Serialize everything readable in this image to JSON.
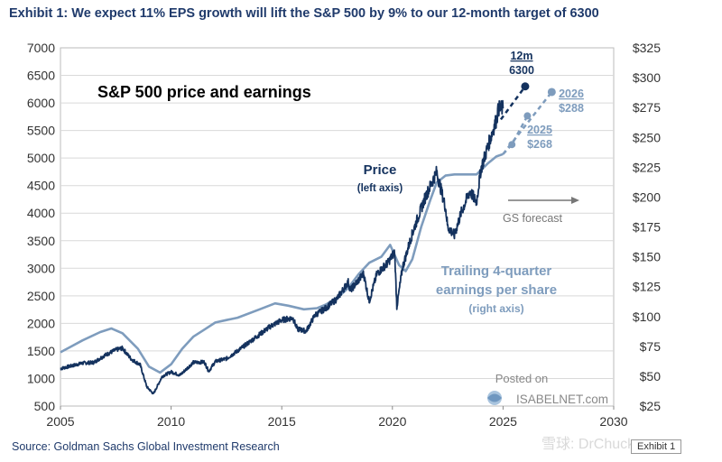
{
  "header": {
    "title": "Exhibit 1: We expect 11% EPS growth will lift the S&P 500 by 9% to our 12-month target of 6300"
  },
  "footer": {
    "source": "Source: Goldman Sachs Global Investment Research",
    "exhibit_label": "Exhibit 1",
    "watermark": "雪球: DrChuck"
  },
  "posted": {
    "line1": "Posted on",
    "line2": "ISABELNET.com"
  },
  "colors": {
    "price": "#14325e",
    "eps": "#7e9cbd",
    "forecast_arrow": "#777777",
    "title_text": "#1f3a6b",
    "grid": "#d9d9d9"
  },
  "chart_data": {
    "type": "line",
    "title": "S&P 500 price and earnings",
    "x_range": [
      2005,
      2030
    ],
    "x_ticks": [
      "2005",
      "2010",
      "2015",
      "2020",
      "2025",
      "2030"
    ],
    "y_left_range": [
      500,
      7000
    ],
    "y_left_ticks": [
      "500",
      "1000",
      "1500",
      "2000",
      "2500",
      "3000",
      "3500",
      "4000",
      "4500",
      "5000",
      "5500",
      "6000",
      "6500",
      "7000"
    ],
    "y_right_range": [
      25,
      325
    ],
    "y_right_ticks": [
      "$25",
      "$50",
      "$75",
      "$100",
      "$125",
      "$150",
      "$175",
      "$200",
      "$225",
      "$250",
      "$275",
      "$300",
      "$325"
    ],
    "grid": "horizontal",
    "series": [
      {
        "name": "Price",
        "name_sub": "(left axis)",
        "axis": "left",
        "points": [
          [
            2005.0,
            1180
          ],
          [
            2005.5,
            1230
          ],
          [
            2006.0,
            1280
          ],
          [
            2006.5,
            1290
          ],
          [
            2007.0,
            1420
          ],
          [
            2007.5,
            1520
          ],
          [
            2007.8,
            1550
          ],
          [
            2008.2,
            1350
          ],
          [
            2008.6,
            1250
          ],
          [
            2008.9,
            850
          ],
          [
            2009.2,
            720
          ],
          [
            2009.6,
            1040
          ],
          [
            2010.0,
            1120
          ],
          [
            2010.4,
            1060
          ],
          [
            2011.0,
            1290
          ],
          [
            2011.5,
            1300
          ],
          [
            2011.7,
            1130
          ],
          [
            2012.0,
            1310
          ],
          [
            2012.5,
            1360
          ],
          [
            2013.0,
            1500
          ],
          [
            2013.5,
            1650
          ],
          [
            2014.0,
            1800
          ],
          [
            2014.5,
            1950
          ],
          [
            2015.0,
            2060
          ],
          [
            2015.5,
            2100
          ],
          [
            2015.7,
            1900
          ],
          [
            2016.1,
            1860
          ],
          [
            2016.5,
            2150
          ],
          [
            2017.0,
            2280
          ],
          [
            2017.5,
            2450
          ],
          [
            2018.0,
            2750
          ],
          [
            2018.1,
            2600
          ],
          [
            2018.7,
            2900
          ],
          [
            2018.95,
            2400
          ],
          [
            2019.3,
            2900
          ],
          [
            2019.8,
            3100
          ],
          [
            2020.1,
            3300
          ],
          [
            2020.2,
            2300
          ],
          [
            2020.45,
            3000
          ],
          [
            2020.8,
            3500
          ],
          [
            2021.0,
            3750
          ],
          [
            2021.5,
            4300
          ],
          [
            2022.0,
            4750
          ],
          [
            2022.4,
            4100
          ],
          [
            2022.5,
            3750
          ],
          [
            2022.8,
            3600
          ],
          [
            2023.1,
            4000
          ],
          [
            2023.5,
            4400
          ],
          [
            2023.8,
            4200
          ],
          [
            2024.0,
            4800
          ],
          [
            2024.5,
            5450
          ],
          [
            2024.7,
            5700
          ],
          [
            2024.8,
            5900
          ],
          [
            2025.0,
            5900
          ]
        ]
      },
      {
        "name": "Trailing 4-quarter",
        "name_sub": "earnings per share",
        "name_sub2": "(right axis)",
        "axis": "right",
        "points": [
          [
            2005.0,
            70
          ],
          [
            2006.0,
            80
          ],
          [
            2006.8,
            87
          ],
          [
            2007.3,
            90
          ],
          [
            2007.8,
            86
          ],
          [
            2008.5,
            73
          ],
          [
            2009.0,
            58
          ],
          [
            2009.5,
            53
          ],
          [
            2010.0,
            60
          ],
          [
            2010.5,
            73
          ],
          [
            2011.0,
            83
          ],
          [
            2011.5,
            89
          ],
          [
            2012.0,
            95
          ],
          [
            2012.5,
            97
          ],
          [
            2013.0,
            99
          ],
          [
            2014.0,
            106
          ],
          [
            2014.7,
            111
          ],
          [
            2015.3,
            109
          ],
          [
            2016.0,
            106
          ],
          [
            2016.6,
            107
          ],
          [
            2017.0,
            110
          ],
          [
            2017.6,
            117
          ],
          [
            2018.0,
            124
          ],
          [
            2018.5,
            136
          ],
          [
            2018.95,
            145
          ],
          [
            2019.5,
            150
          ],
          [
            2019.9,
            160
          ],
          [
            2020.3,
            143
          ],
          [
            2020.6,
            138
          ],
          [
            2020.9,
            148
          ],
          [
            2021.3,
            175
          ],
          [
            2021.7,
            197
          ],
          [
            2022.0,
            212
          ],
          [
            2022.4,
            218
          ],
          [
            2022.8,
            219
          ],
          [
            2023.3,
            219
          ],
          [
            2023.8,
            219
          ],
          [
            2024.3,
            228
          ],
          [
            2024.7,
            234
          ],
          [
            2025.0,
            236
          ]
        ]
      }
    ],
    "forecasts": [
      {
        "series": "Price",
        "from": [
          2024.9,
          5700
        ],
        "to": [
          2026.0,
          6300
        ],
        "label_top": "12m",
        "label_value": "6300"
      },
      {
        "series": "Trailing 4-quarter earnings per share",
        "from": [
          2025.0,
          236
        ],
        "to": [
          2027.2,
          288
        ],
        "label_top": "2026",
        "label_value": "$288"
      },
      {
        "series": "Trailing 4-quarter earnings per share",
        "points": [
          [
            2025.0,
            236
          ],
          [
            2025.4,
            244
          ],
          [
            2026.1,
            268
          ]
        ],
        "label_top": "2025",
        "label_value": "$268"
      }
    ],
    "annotation_forecast": "GS forecast"
  }
}
